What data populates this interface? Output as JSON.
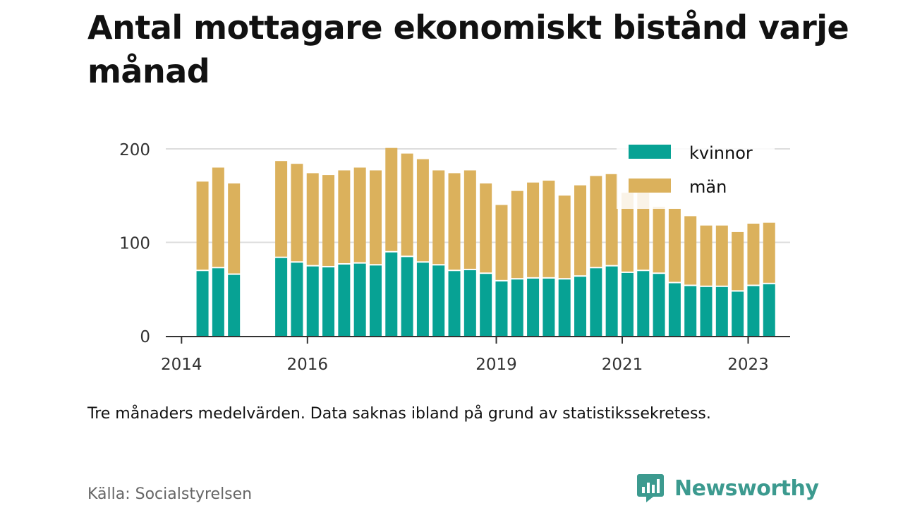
{
  "title": "Antal mottagare ekonomiskt bistånd varje månad",
  "footnote": "Tre månaders medelvärden. Data saknas ibland på grund av statistikssekretess.",
  "source": "Källa: Socialstyrelsen",
  "brand": {
    "name": "Newsworthy",
    "logo_icon": "newsworthy-chart-icon"
  },
  "colors": {
    "kvinnor": "#07a294",
    "man": "#dbb15c",
    "grid": "#dddddd",
    "axis": "#333333"
  },
  "chart_data": {
    "type": "bar",
    "stacked": true,
    "x_type": "time",
    "x_range": [
      "2013-10",
      "2023-09"
    ],
    "x_ticks": [
      "2014",
      "2016",
      "2019",
      "2021",
      "2023"
    ],
    "y_ticks": [
      "0",
      "100",
      "200"
    ],
    "ylim": [
      0,
      200
    ],
    "grid": true,
    "legend_position": "top-right",
    "periods": [
      "2014-05",
      "2014-08",
      "2014-11",
      "2015-08",
      "2015-11",
      "2016-02",
      "2016-05",
      "2016-08",
      "2016-11",
      "2017-02",
      "2017-05",
      "2017-08",
      "2017-11",
      "2018-02",
      "2018-05",
      "2018-08",
      "2018-11",
      "2019-02",
      "2019-05",
      "2019-08",
      "2019-11",
      "2020-02",
      "2020-05",
      "2020-08",
      "2020-11",
      "2021-02",
      "2021-05",
      "2021-08",
      "2021-11",
      "2022-02",
      "2022-05",
      "2022-08",
      "2022-11",
      "2023-02",
      "2023-05"
    ],
    "series": [
      {
        "name": "kvinnor",
        "values": [
          70,
          73,
          66,
          84,
          79,
          75,
          74,
          77,
          78,
          76,
          90,
          85,
          79,
          76,
          70,
          71,
          67,
          59,
          61,
          62,
          62,
          61,
          64,
          73,
          75,
          68,
          70,
          67,
          57,
          54,
          53,
          53,
          48,
          54,
          56
        ]
      },
      {
        "name": "män",
        "values": [
          95,
          107,
          97,
          103,
          105,
          99,
          98,
          100,
          102,
          101,
          111,
          110,
          110,
          101,
          104,
          106,
          96,
          81,
          94,
          102,
          104,
          89,
          97,
          98,
          98,
          85,
          83,
          71,
          79,
          74,
          65,
          65,
          63,
          66,
          65
        ]
      }
    ]
  }
}
